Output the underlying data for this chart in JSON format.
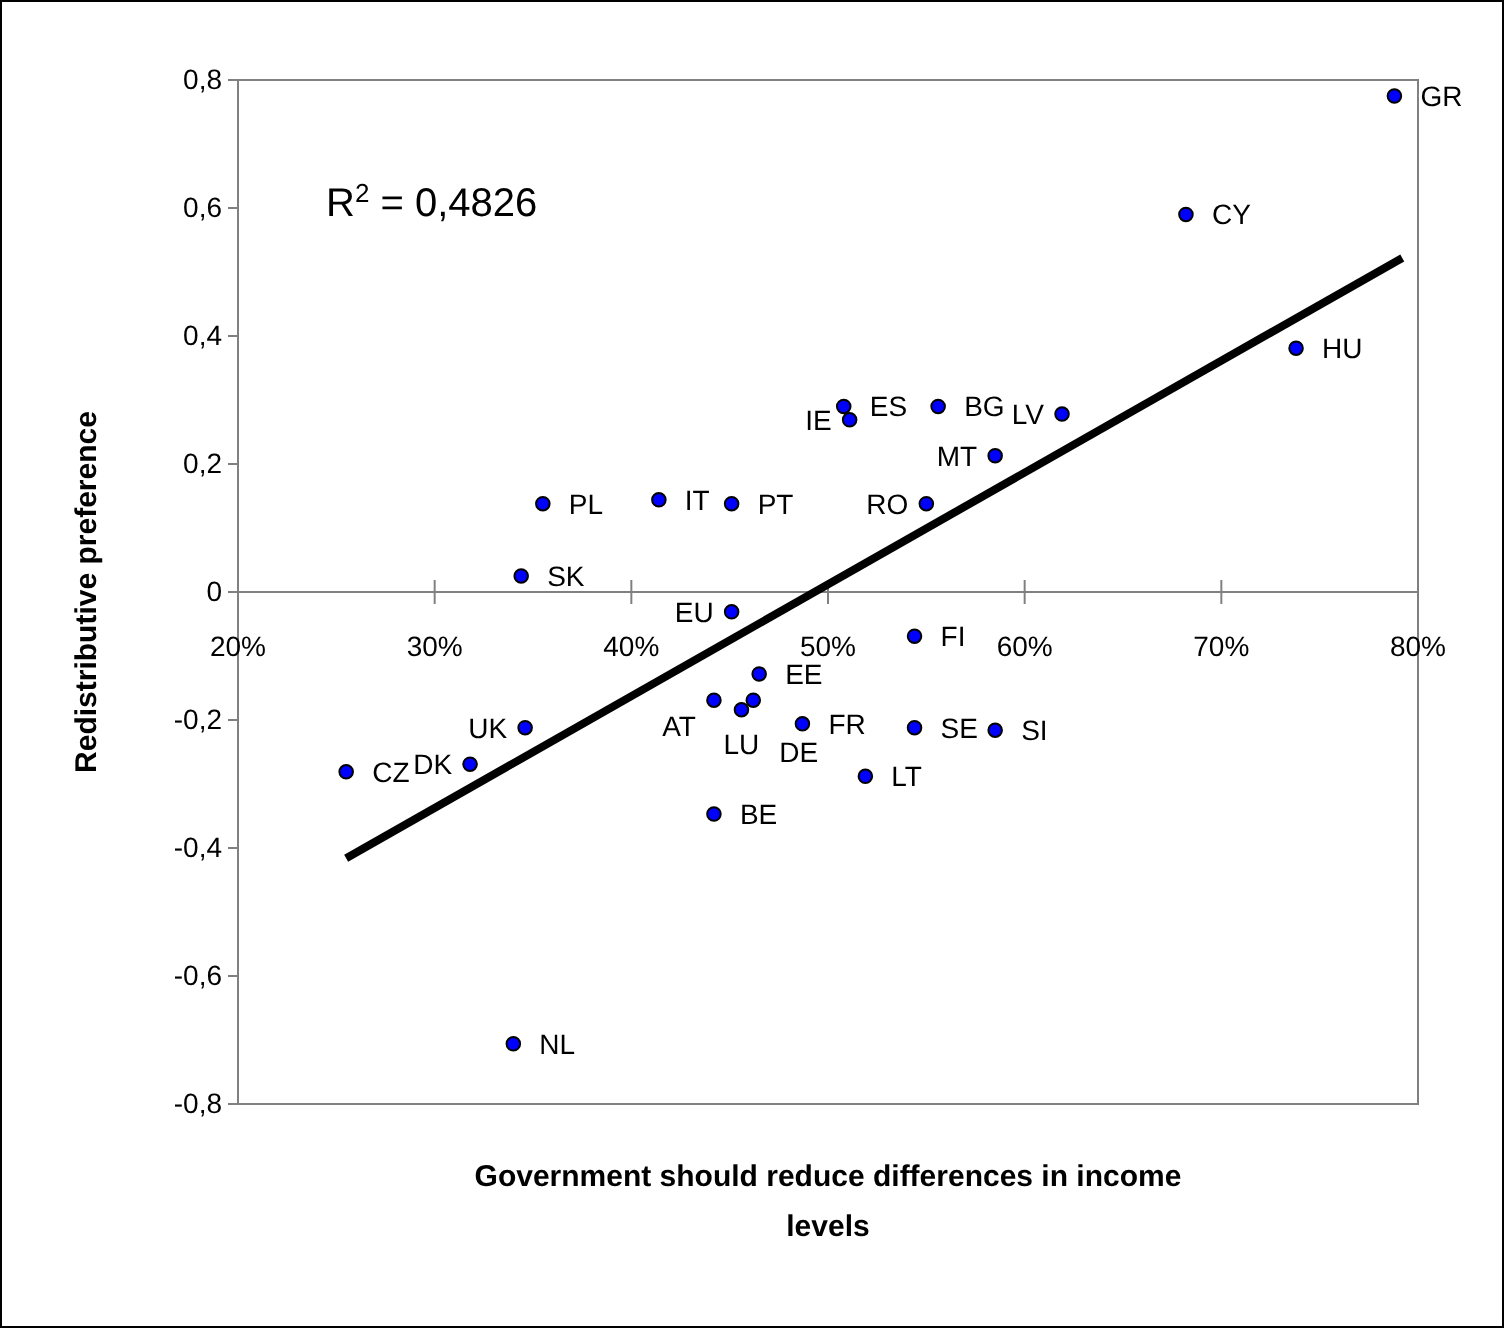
{
  "chart_data": {
    "type": "scatter",
    "xlabel": "Government should reduce differences in income levels",
    "ylabel": "Redistributive preference",
    "xlim": [
      0.2,
      0.8
    ],
    "ylim": [
      -0.8,
      0.8
    ],
    "xticks": [
      {
        "value": 0.2,
        "label": "20%"
      },
      {
        "value": 0.3,
        "label": "30%"
      },
      {
        "value": 0.4,
        "label": "40%"
      },
      {
        "value": 0.5,
        "label": "50%"
      },
      {
        "value": 0.6,
        "label": "60%"
      },
      {
        "value": 0.7,
        "label": "70%"
      },
      {
        "value": 0.8,
        "label": "80%"
      }
    ],
    "yticks": [
      {
        "value": -0.8,
        "label": "-0,8"
      },
      {
        "value": -0.6,
        "label": "-0,6"
      },
      {
        "value": -0.4,
        "label": "-0,4"
      },
      {
        "value": -0.2,
        "label": "-0,2"
      },
      0,
      {
        "value": 0.2,
        "label": "0,2"
      },
      {
        "value": 0.4,
        "label": "0,4"
      },
      {
        "value": 0.6,
        "label": "0,6"
      },
      {
        "value": 0.8,
        "label": "0,8"
      }
    ],
    "grid": false,
    "marker": "circle",
    "series": [
      {
        "color": "#0000ff",
        "x": [
          0.788,
          0.682,
          0.738,
          0.508,
          0.511,
          0.556,
          0.619,
          0.585,
          0.55,
          0.451,
          0.414,
          0.355,
          0.344,
          0.451,
          0.544,
          0.465,
          0.442,
          0.462,
          0.456,
          0.487,
          0.544,
          0.585,
          0.519,
          0.346,
          0.318,
          0.255,
          0.34,
          0.442
        ],
        "values": [
          0.775,
          0.59,
          0.381,
          0.29,
          0.269,
          0.29,
          0.278,
          0.213,
          0.138,
          0.138,
          0.144,
          0.138,
          0.025,
          -0.031,
          -0.069,
          -0.128,
          -0.169,
          -0.169,
          -0.184,
          -0.206,
          -0.212,
          -0.216,
          -0.288,
          -0.212,
          -0.269,
          -0.281,
          -0.706,
          -0.347
        ]
      },
      {
        "type": "line",
        "marker": "none",
        "color": "#000000",
        "x": [
          0.255,
          0.792
        ],
        "values": [
          -0.416,
          0.522
        ]
      }
    ],
    "annotations": [
      {
        "text": "R$^{2}$ = 0,4826"
      },
      {
        "text": "GR",
        "x": 0.788,
        "y": 0.775
      },
      {
        "text": "CY",
        "x": 0.682,
        "y": 0.59
      },
      {
        "text": "HU",
        "x": 0.738,
        "y": 0.381
      },
      {
        "text": "ES",
        "x": 0.508,
        "y": 0.29
      },
      {
        "text": "IE",
        "x": 0.511,
        "y": 0.269
      },
      {
        "text": "BG",
        "x": 0.556,
        "y": 0.29
      },
      {
        "text": "LV",
        "x": 0.619,
        "y": 0.278
      },
      {
        "text": "MT",
        "x": 0.585,
        "y": 0.213
      },
      {
        "text": "RO",
        "x": 0.55,
        "y": 0.138
      },
      {
        "text": "PT",
        "x": 0.451,
        "y": 0.138
      },
      {
        "text": "IT",
        "x": 0.414,
        "y": 0.144
      },
      {
        "text": "PL",
        "x": 0.355,
        "y": 0.138
      },
      {
        "text": "SK",
        "x": 0.344,
        "y": 0.025
      },
      {
        "text": "EU",
        "x": 0.451,
        "y": -0.031
      },
      {
        "text": "FI",
        "x": 0.544,
        "y": -0.069
      },
      {
        "text": "EE",
        "x": 0.465,
        "y": -0.128
      },
      {
        "text": "AT",
        "x": 0.442,
        "y": -0.169
      },
      {
        "text": "DE",
        "x": 0.462,
        "y": -0.169
      },
      {
        "text": "LU",
        "x": 0.456,
        "y": -0.184
      },
      {
        "text": "FR",
        "x": 0.487,
        "y": -0.206
      },
      {
        "text": "SE",
        "x": 0.544,
        "y": -0.212
      },
      {
        "text": "SI",
        "x": 0.585,
        "y": -0.216
      },
      {
        "text": "LT",
        "x": 0.519,
        "y": -0.288
      },
      {
        "text": "UK",
        "x": 0.346,
        "y": -0.212
      },
      {
        "text": "DK",
        "x": 0.318,
        "y": -0.269
      },
      {
        "text": "CZ",
        "x": 0.255,
        "y": -0.281
      },
      {
        "text": "NL",
        "x": 0.34,
        "y": -0.706
      },
      {
        "text": "BE",
        "x": 0.442,
        "y": -0.347
      }
    ]
  }
}
